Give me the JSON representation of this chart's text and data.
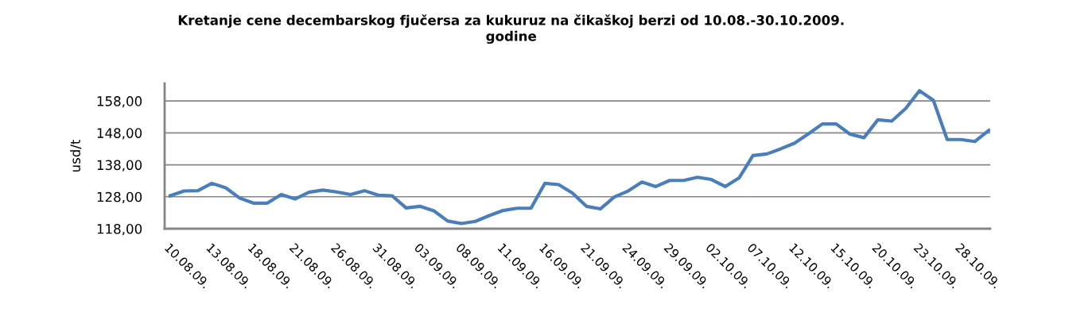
{
  "chart_data": {
    "type": "line",
    "title": "Kretanje cene decembarskog fjučersa za kukuruz na čikaškoj berzi od 10.08.-30.10.2009.\ngodine",
    "ylabel": "usd/t",
    "categories": [
      "10.08.09.",
      null,
      null,
      "13.08.09.",
      null,
      null,
      "18.08.09.",
      null,
      null,
      "21.08.09.",
      null,
      null,
      "26.08.09.",
      null,
      null,
      "31.08.09.",
      null,
      null,
      "03.09.09.",
      null,
      null,
      "08.09.09.",
      null,
      null,
      "11.09.09.",
      null,
      null,
      "16.09.09.",
      null,
      null,
      "21.09.09.",
      null,
      null,
      "24.09.09.",
      null,
      null,
      "29.09.09.",
      null,
      null,
      "02.10.09.",
      null,
      null,
      "07.10.09.",
      null,
      null,
      "12.10.09.",
      null,
      null,
      "15.10.09.",
      null,
      null,
      "20.10.09.",
      null,
      null,
      "23.10.09.",
      null,
      null,
      "28.10.09.",
      null,
      null
    ],
    "series": [
      {
        "color": "#4a7ebb",
        "values": [
          128.3,
          129.8,
          129.9,
          132.2,
          130.8,
          127.6,
          126.0,
          126.0,
          128.7,
          127.3,
          129.4,
          130.1,
          129.5,
          128.7,
          129.9,
          128.5,
          128.3,
          124.5,
          125.0,
          123.6,
          120.4,
          119.6,
          120.3,
          122.1,
          123.7,
          124.4,
          124.4,
          132.2,
          131.8,
          129.1,
          125.0,
          124.2,
          127.9,
          129.8,
          132.6,
          131.2,
          133.1,
          133.1,
          134.1,
          133.4,
          131.2,
          133.9,
          140.9,
          141.4,
          143.0,
          144.8,
          147.7,
          150.8,
          150.8,
          147.6,
          146.5,
          152.1,
          151.7,
          155.6,
          161.2,
          158.2,
          145.9,
          145.9,
          145.3,
          148.8
        ]
      }
    ],
    "ylim": [
      118,
      163.5
    ],
    "yticks": [
      {
        "value": 118,
        "label": "118,00"
      },
      {
        "value": 128,
        "label": "128,00"
      },
      {
        "value": 138,
        "label": "138,00"
      },
      {
        "value": 148,
        "label": "148,00"
      },
      {
        "value": 158,
        "label": "158,00"
      }
    ],
    "grid": "y",
    "marker": "none",
    "line_style": "solid"
  }
}
